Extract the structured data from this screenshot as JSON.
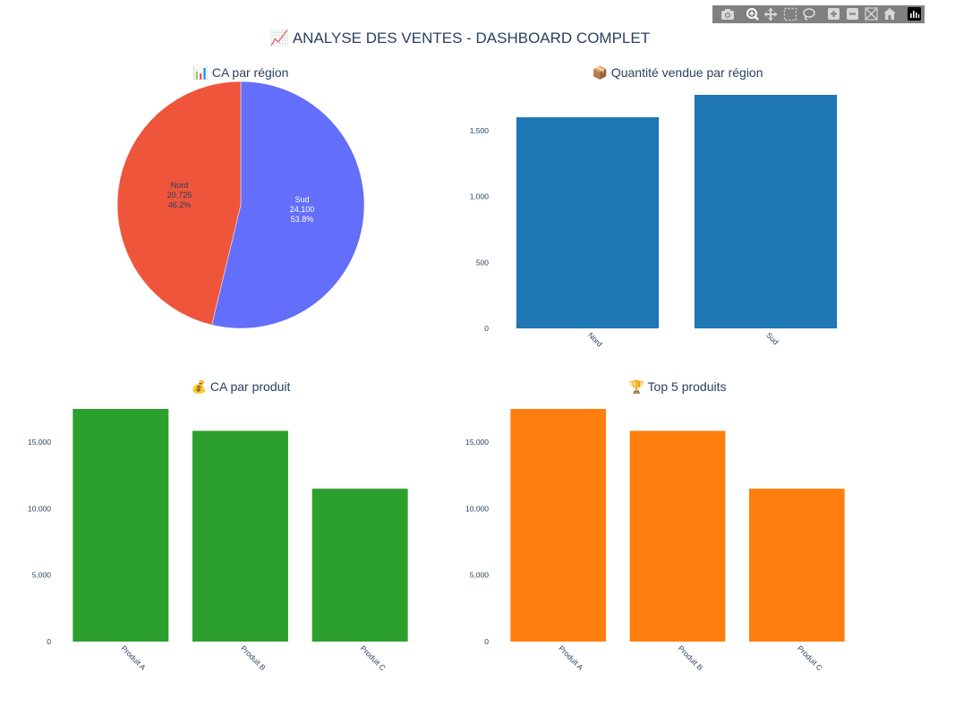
{
  "title": "📈 ANALYSE DES VENTES - DASHBOARD COMPLET",
  "modebar": {
    "icons": [
      "camera-icon",
      "zoom-icon",
      "pan-icon",
      "box-select-icon",
      "lasso-select-icon",
      "zoom-in-icon",
      "zoom-out-icon",
      "autoscale-icon",
      "reset-axes-icon",
      "plotly-logo-icon"
    ]
  },
  "colors": {
    "pie_nord": "#EF553B",
    "pie_sud": "#636EFA",
    "qty_bar": "#1F77B4",
    "ca_produit_bar": "#2CA02C",
    "top5_bar": "#FF7F0E",
    "title_text": "#2A3F5F"
  },
  "chart_data": [
    {
      "type": "pie",
      "title": "📊 CA par région",
      "labels": [
        "Nord",
        "Sud"
      ],
      "values": [
        20725,
        24100
      ],
      "value_labels": [
        "20,725",
        "24,100"
      ],
      "percent_labels": [
        "46.2%",
        "53.8%"
      ]
    },
    {
      "type": "bar",
      "title": "📦 Quantité vendue par région",
      "categories": [
        "Nord",
        "Sud"
      ],
      "values": [
        1600,
        1770
      ],
      "ylim": [
        0,
        1770
      ],
      "yticks": [
        0,
        500,
        1000,
        1500
      ],
      "ytick_labels": [
        "0",
        "500",
        "1,000",
        "1,500"
      ]
    },
    {
      "type": "bar",
      "title": "💰 CA par produit",
      "categories": [
        "Produit A",
        "Produit B",
        "Produit C"
      ],
      "values": [
        17500,
        15850,
        11500
      ],
      "ylim": [
        0,
        17500
      ],
      "yticks": [
        0,
        5000,
        10000,
        15000
      ],
      "ytick_labels": [
        "0",
        "5,000",
        "10,000",
        "15,000"
      ]
    },
    {
      "type": "bar",
      "title": "🏆 Top 5 produits",
      "categories": [
        "Produit A",
        "Produit B",
        "Produit C"
      ],
      "values": [
        17500,
        15850,
        11500
      ],
      "ylim": [
        0,
        17500
      ],
      "yticks": [
        0,
        5000,
        10000,
        15000
      ],
      "ytick_labels": [
        "0",
        "5,000",
        "10,000",
        "15,000"
      ]
    }
  ]
}
